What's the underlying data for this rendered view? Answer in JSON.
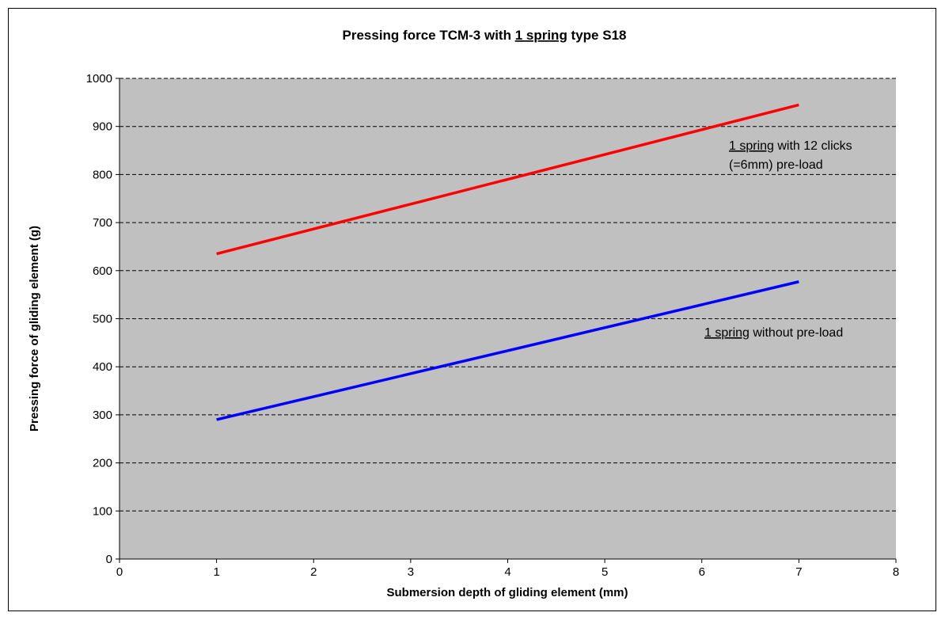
{
  "chart_data": {
    "type": "line",
    "title": {
      "prefix": "Pressing force TCM-3 with ",
      "underlined": "1 spring",
      "suffix": " type S18"
    },
    "xlabel": "Submersion depth of gliding element (mm)",
    "ylabel": "Pressing force of gliding element (g)",
    "xlim": [
      0,
      8
    ],
    "ylim": [
      0,
      1000
    ],
    "xticks": [
      0,
      1,
      2,
      3,
      4,
      5,
      6,
      7,
      8
    ],
    "yticks": [
      0,
      100,
      200,
      300,
      400,
      500,
      600,
      700,
      800,
      900,
      1000
    ],
    "grid": "horizontal-dashed",
    "plot_background": "#c0c0c0",
    "series": [
      {
        "color": "#ff0000",
        "x": [
          1,
          7
        ],
        "y": [
          635,
          945
        ]
      },
      {
        "color": "#0000ff",
        "x": [
          1,
          7
        ],
        "y": [
          290,
          577
        ]
      }
    ],
    "annotations": [
      {
        "underlined": "1 spring",
        "text": " with 12 clicks",
        "line2": "(=6mm) pre-load"
      },
      {
        "underlined": "1 spring",
        "text": " without pre-load"
      }
    ]
  }
}
